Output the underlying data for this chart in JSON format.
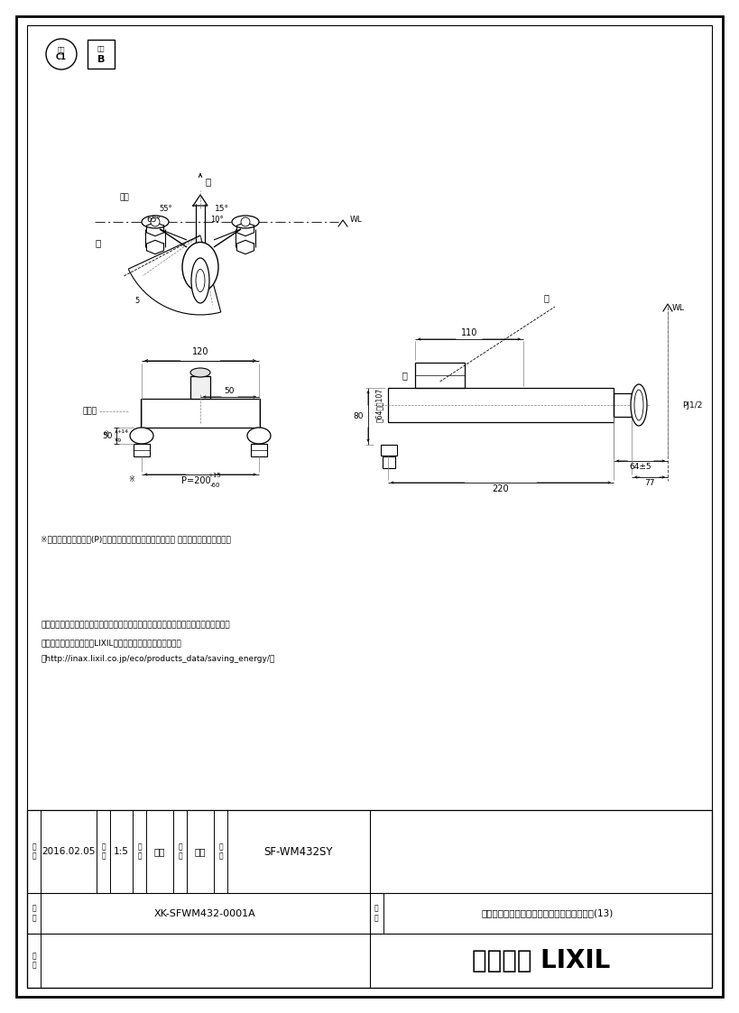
{
  "bg_color": "#ffffff",
  "note1": "※印寸法は配管ピッチ(P)が最大～最小の場合を（標準寸法 最大）で示しています。",
  "note2": "・流量調節栓は取付脚に付いています。取替えの際は、取付脚ごと交換してください。",
  "note3": "・節湯記号については、LIXILホームページを参照ください。",
  "note4": "〈http://inax.lixil.co.jp/eco/products_data/saving_energy/〉",
  "table_date": "2016.02.05",
  "table_scale": "1:5",
  "table_maker": "宮本",
  "table_checker": "池川",
  "table_product_no": "SF-WM432SY",
  "table_drawing_no": "XK-SFWM432-0001A",
  "table_product_name": "キッチンシャワー付シングルレバー混合水栓(13)",
  "table_company": "株式会社 LIXIL",
  "label_yu": "湯",
  "label_mizu": "水",
  "label_kongo": "混合",
  "label_toritsuke": "取付脚",
  "label_aku": "開",
  "label_toji": "閉",
  "label_nichitsuke": "日\n付",
  "label_shakudo": "尺\n度",
  "label_seizu": "製\n図",
  "label_kenzo": "検\n図",
  "label_hinban": "品\n番",
  "label_zuban": "図\n番",
  "label_hinmei": "品\n名",
  "label_biko": "備\n考",
  "label_setsuyu1": "節湯",
  "label_setsuyu2": "節湯",
  "label_C1": "C1",
  "label_B": "B"
}
